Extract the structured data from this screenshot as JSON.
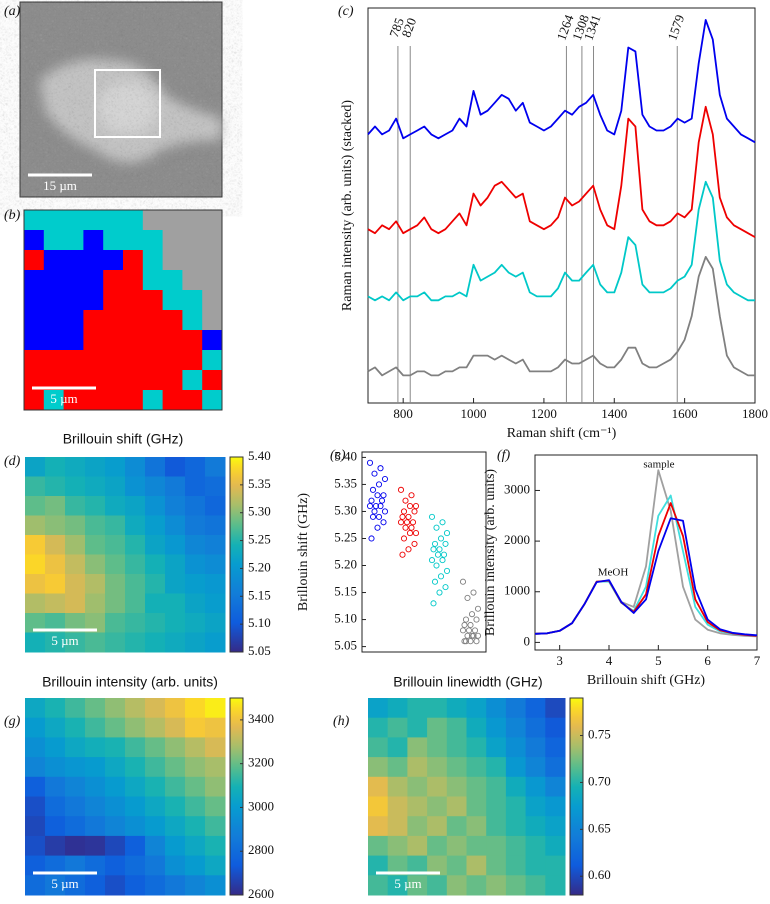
{
  "chart_data": [
    {
      "type": "image",
      "label": "(a)",
      "scale_bar": "15 µm"
    },
    {
      "type": "cluster-map",
      "label": "(b)",
      "scale_bar": "5 µm",
      "colors": [
        "#a0a0a0",
        "#00cccc",
        "#0000ff",
        "#ff0000"
      ],
      "z": [
        [
          1,
          1,
          1,
          1,
          1,
          1,
          0,
          0,
          0,
          0
        ],
        [
          2,
          1,
          1,
          2,
          1,
          1,
          1,
          0,
          0,
          0
        ],
        [
          3,
          2,
          2,
          2,
          2,
          3,
          1,
          0,
          0,
          0
        ],
        [
          2,
          2,
          2,
          2,
          3,
          3,
          1,
          1,
          0,
          0
        ],
        [
          2,
          2,
          2,
          2,
          3,
          3,
          3,
          1,
          1,
          0
        ],
        [
          2,
          2,
          2,
          3,
          3,
          3,
          3,
          3,
          1,
          0
        ],
        [
          2,
          2,
          2,
          3,
          3,
          3,
          3,
          3,
          3,
          2
        ],
        [
          3,
          3,
          3,
          3,
          3,
          3,
          3,
          3,
          3,
          1
        ],
        [
          3,
          3,
          3,
          3,
          3,
          3,
          3,
          3,
          1,
          3
        ],
        [
          3,
          1,
          3,
          3,
          3,
          3,
          1,
          3,
          3,
          1
        ]
      ]
    },
    {
      "type": "line",
      "label": "(c)",
      "xlabel": "Raman shift (cm⁻¹)",
      "ylabel": "Raman intensity (arb. units) (stacked)",
      "xlim": [
        700,
        1800
      ],
      "xticks": [
        800,
        1000,
        1200,
        1400,
        1600,
        1800
      ],
      "ylim": [
        0,
        100
      ],
      "peak_lines": [
        785,
        820,
        1264,
        1308,
        1341,
        1579
      ],
      "x": [
        700,
        720,
        740,
        760,
        780,
        800,
        820,
        840,
        860,
        880,
        900,
        920,
        940,
        960,
        980,
        1000,
        1020,
        1040,
        1060,
        1080,
        1100,
        1120,
        1140,
        1160,
        1180,
        1200,
        1220,
        1240,
        1260,
        1280,
        1300,
        1320,
        1340,
        1360,
        1380,
        1400,
        1420,
        1440,
        1460,
        1480,
        1500,
        1520,
        1540,
        1560,
        1580,
        1600,
        1620,
        1640,
        1660,
        1680,
        1700,
        1720,
        1740,
        1760,
        1780,
        1800
      ],
      "series": [
        {
          "color": "#0000ee",
          "values": [
            68,
            70,
            68,
            69,
            72,
            67,
            68,
            69,
            70,
            68,
            67,
            68,
            69,
            72,
            70,
            79,
            73,
            74,
            76,
            78,
            77,
            74,
            76,
            71,
            70,
            69,
            70,
            72,
            74,
            73,
            75,
            76,
            78,
            73,
            69,
            68,
            74,
            90,
            89,
            73,
            70,
            69,
            69,
            70,
            72,
            71,
            72,
            86,
            97,
            92,
            78,
            72,
            70,
            68,
            67,
            66
          ]
        },
        {
          "color": "#ee0000",
          "values": [
            44,
            43,
            45,
            44,
            46,
            43,
            44,
            45,
            47,
            44,
            43,
            44,
            46,
            48,
            45,
            53,
            50,
            52,
            55,
            56,
            54,
            52,
            53,
            46,
            45,
            44,
            45,
            47,
            52,
            50,
            51,
            53,
            55,
            49,
            45,
            44,
            55,
            72,
            70,
            49,
            46,
            45,
            45,
            46,
            48,
            47,
            49,
            66,
            75,
            68,
            52,
            47,
            45,
            44,
            43,
            42
          ]
        },
        {
          "color": "#00c8c8",
          "values": [
            27,
            26,
            27,
            26,
            28,
            26,
            27,
            27,
            28,
            26,
            26,
            27,
            27,
            28,
            27,
            35,
            31,
            32,
            33,
            35,
            33,
            32,
            33,
            28,
            27,
            27,
            27,
            29,
            33,
            31,
            31,
            33,
            35,
            30,
            28,
            28,
            33,
            42,
            40,
            30,
            28,
            28,
            28,
            29,
            31,
            32,
            35,
            49,
            56,
            52,
            36,
            30,
            28,
            27,
            26,
            26
          ]
        },
        {
          "color": "#808080",
          "values": [
            8,
            9,
            7,
            8,
            9,
            7,
            7,
            8,
            8,
            7,
            7,
            8,
            8,
            9,
            9,
            12,
            12,
            12,
            11,
            12,
            11,
            10,
            11,
            8,
            8,
            8,
            8,
            9,
            11,
            10,
            10,
            11,
            12,
            10,
            9,
            9,
            11,
            14,
            14,
            10,
            9,
            9,
            10,
            11,
            13,
            16,
            22,
            32,
            37,
            34,
            22,
            12,
            9,
            8,
            7,
            7
          ]
        }
      ]
    },
    {
      "type": "heatmap",
      "label": "(d)",
      "title": "Brillouin shift (GHz)",
      "scale_bar": "5 µm",
      "clim": [
        5.05,
        5.4
      ],
      "cticks": [
        5.05,
        {
          "value": 5.1,
          "label": "5.10"
        },
        5.15,
        {
          "value": 5.2,
          "label": "5.20"
        },
        5.25,
        {
          "value": 5.3,
          "label": "5.30"
        },
        5.35,
        {
          "value": 5.4,
          "label": "5.40"
        }
      ],
      "z": [
        [
          5.22,
          5.24,
          5.23,
          5.22,
          5.21,
          5.18,
          5.14,
          5.1,
          5.12,
          5.15
        ],
        [
          5.26,
          5.25,
          5.24,
          5.23,
          5.22,
          5.19,
          5.17,
          5.15,
          5.12,
          5.13
        ],
        [
          5.28,
          5.29,
          5.26,
          5.25,
          5.23,
          5.22,
          5.19,
          5.16,
          5.14,
          5.12
        ],
        [
          5.31,
          5.3,
          5.29,
          5.27,
          5.26,
          5.23,
          5.21,
          5.18,
          5.15,
          5.14
        ],
        [
          5.37,
          5.34,
          5.31,
          5.28,
          5.27,
          5.25,
          5.22,
          5.2,
          5.17,
          5.16
        ],
        [
          5.38,
          5.36,
          5.33,
          5.3,
          5.28,
          5.26,
          5.24,
          5.22,
          5.19,
          5.18
        ],
        [
          5.36,
          5.37,
          5.34,
          5.32,
          5.29,
          5.27,
          5.25,
          5.22,
          5.21,
          5.2
        ],
        [
          5.32,
          5.33,
          5.34,
          5.31,
          5.29,
          5.27,
          5.24,
          5.24,
          5.22,
          5.21
        ],
        [
          5.28,
          5.27,
          5.29,
          5.3,
          5.27,
          5.26,
          5.25,
          5.24,
          5.23,
          5.22
        ],
        [
          5.24,
          5.25,
          5.26,
          5.27,
          5.26,
          5.25,
          5.24,
          5.23,
          5.22,
          5.21
        ]
      ]
    },
    {
      "type": "strip",
      "label": "(e)",
      "ylabel": "Brillouin shift (GHz)",
      "ylim": [
        5.04,
        5.41
      ],
      "yticks": [
        5.05,
        {
          "value": 5.1,
          "label": "5.10"
        },
        5.15,
        {
          "value": 5.2,
          "label": "5.20"
        },
        5.25,
        {
          "value": 5.3,
          "label": "5.30"
        },
        5.35,
        {
          "value": 5.4,
          "label": "5.40"
        }
      ],
      "series": [
        {
          "color": "#0000ee",
          "values": [
            5.39,
            5.38,
            5.37,
            5.36,
            5.35,
            5.34,
            5.33,
            5.33,
            5.32,
            5.32,
            5.31,
            5.31,
            5.31,
            5.3,
            5.3,
            5.29,
            5.29,
            5.28,
            5.27,
            5.25
          ]
        },
        {
          "color": "#ee0000",
          "values": [
            5.34,
            5.33,
            5.32,
            5.31,
            5.31,
            5.3,
            5.3,
            5.29,
            5.29,
            5.28,
            5.28,
            5.28,
            5.27,
            5.27,
            5.26,
            5.26,
            5.25,
            5.24,
            5.23,
            5.22
          ]
        },
        {
          "color": "#00c8c8",
          "values": [
            5.29,
            5.28,
            5.27,
            5.26,
            5.25,
            5.24,
            5.24,
            5.23,
            5.23,
            5.22,
            5.22,
            5.21,
            5.21,
            5.2,
            5.19,
            5.18,
            5.17,
            5.16,
            5.15,
            5.13
          ]
        },
        {
          "color": "#808080",
          "values": [
            5.17,
            5.15,
            5.14,
            5.12,
            5.11,
            5.1,
            5.1,
            5.09,
            5.09,
            5.08,
            5.08,
            5.08,
            5.07,
            5.07,
            5.07,
            5.07,
            5.06,
            5.06,
            5.06,
            5.06
          ]
        }
      ]
    },
    {
      "type": "line",
      "label": "(f)",
      "xlabel": "Brillouin shift (GHz)",
      "ylabel": "Brillouin intensity (arb. units)",
      "xlim": [
        2.5,
        7
      ],
      "xticks": [
        3,
        4,
        5,
        6,
        7
      ],
      "ylim": [
        -150,
        3700
      ],
      "yticks": [
        0,
        1000,
        2000,
        3000
      ],
      "annotations": [
        "MeOH",
        "sample"
      ],
      "x": [
        2.5,
        2.75,
        3.0,
        3.25,
        3.5,
        3.75,
        4.0,
        4.25,
        4.5,
        4.75,
        5.0,
        5.25,
        5.5,
        5.75,
        6.0,
        6.25,
        6.5,
        6.75,
        7.0
      ],
      "series": [
        {
          "color": "#a0a0a0",
          "values": [
            170,
            180,
            230,
            380,
            750,
            1200,
            1200,
            800,
            700,
            1500,
            3400,
            2600,
            1100,
            450,
            250,
            180,
            150,
            130,
            120
          ]
        },
        {
          "color": "#40dede",
          "values": [
            170,
            180,
            230,
            380,
            750,
            1200,
            1200,
            780,
            620,
            1100,
            2500,
            2900,
            1800,
            700,
            350,
            220,
            170,
            150,
            130
          ]
        },
        {
          "color": "#ee0000",
          "values": [
            170,
            180,
            230,
            380,
            750,
            1200,
            1220,
            790,
            600,
            950,
            2100,
            2750,
            2100,
            850,
            400,
            240,
            180,
            150,
            130
          ]
        },
        {
          "color": "#0000ee",
          "values": [
            170,
            180,
            230,
            380,
            750,
            1190,
            1230,
            800,
            580,
            850,
            1800,
            2450,
            2400,
            1050,
            450,
            260,
            190,
            160,
            140
          ]
        }
      ]
    },
    {
      "type": "heatmap",
      "label": "(g)",
      "title": "Brillouin intensity (arb. units)",
      "scale_bar": "5 µm",
      "clim": [
        2600,
        3500
      ],
      "cticks": [
        2600,
        2800,
        3000,
        3200,
        3400
      ],
      "z": [
        [
          3050,
          3100,
          3150,
          3200,
          3250,
          3300,
          3350,
          3400,
          3450,
          3480
        ],
        [
          3000,
          3050,
          3100,
          3150,
          3200,
          3250,
          3300,
          3350,
          3420,
          3400
        ],
        [
          2950,
          3000,
          3050,
          3080,
          3100,
          3150,
          3200,
          3250,
          3300,
          3350
        ],
        [
          2900,
          2950,
          2980,
          3000,
          3050,
          3100,
          3150,
          3200,
          3250,
          3280
        ],
        [
          2750,
          2850,
          2900,
          2950,
          3000,
          3050,
          3100,
          3150,
          3200,
          3250
        ],
        [
          2700,
          2800,
          2850,
          2900,
          2950,
          3000,
          3050,
          3100,
          3150,
          3200
        ],
        [
          2680,
          2750,
          2800,
          2850,
          2900,
          2950,
          3000,
          3050,
          3100,
          3150
        ],
        [
          2700,
          2650,
          2620,
          2630,
          2680,
          2750,
          2900,
          3000,
          3050,
          3100
        ],
        [
          2750,
          2800,
          2850,
          2800,
          2750,
          2800,
          2850,
          2950,
          3000,
          3050
        ],
        [
          2800,
          2850,
          2800,
          2750,
          2700,
          2750,
          2800,
          2850,
          2900,
          2950
        ]
      ]
    },
    {
      "type": "heatmap",
      "label": "(h)",
      "title": "Brillouin linewidth (GHz)",
      "scale_bar": "5 µm",
      "clim": [
        0.58,
        0.79
      ],
      "cticks": [
        {
          "value": 0.6,
          "label": "0.60"
        },
        0.65,
        {
          "value": 0.7,
          "label": "0.70"
        },
        0.75
      ],
      "z": [
        [
          0.68,
          0.69,
          0.7,
          0.7,
          0.69,
          0.68,
          0.66,
          0.64,
          0.62,
          0.6
        ],
        [
          0.7,
          0.71,
          0.7,
          0.72,
          0.71,
          0.69,
          0.67,
          0.65,
          0.63,
          0.61
        ],
        [
          0.71,
          0.7,
          0.73,
          0.72,
          0.71,
          0.7,
          0.68,
          0.66,
          0.64,
          0.62
        ],
        [
          0.73,
          0.72,
          0.74,
          0.73,
          0.72,
          0.71,
          0.7,
          0.67,
          0.65,
          0.63
        ],
        [
          0.76,
          0.74,
          0.73,
          0.74,
          0.73,
          0.72,
          0.71,
          0.69,
          0.67,
          0.65
        ],
        [
          0.77,
          0.75,
          0.74,
          0.73,
          0.74,
          0.72,
          0.71,
          0.7,
          0.68,
          0.67
        ],
        [
          0.76,
          0.75,
          0.73,
          0.74,
          0.72,
          0.73,
          0.71,
          0.7,
          0.69,
          0.68
        ],
        [
          0.72,
          0.73,
          0.74,
          0.72,
          0.73,
          0.72,
          0.72,
          0.71,
          0.7,
          0.69
        ],
        [
          0.7,
          0.72,
          0.71,
          0.73,
          0.72,
          0.74,
          0.72,
          0.71,
          0.7,
          0.7
        ],
        [
          0.71,
          0.7,
          0.72,
          0.71,
          0.73,
          0.72,
          0.73,
          0.72,
          0.71,
          0.7
        ]
      ]
    }
  ]
}
